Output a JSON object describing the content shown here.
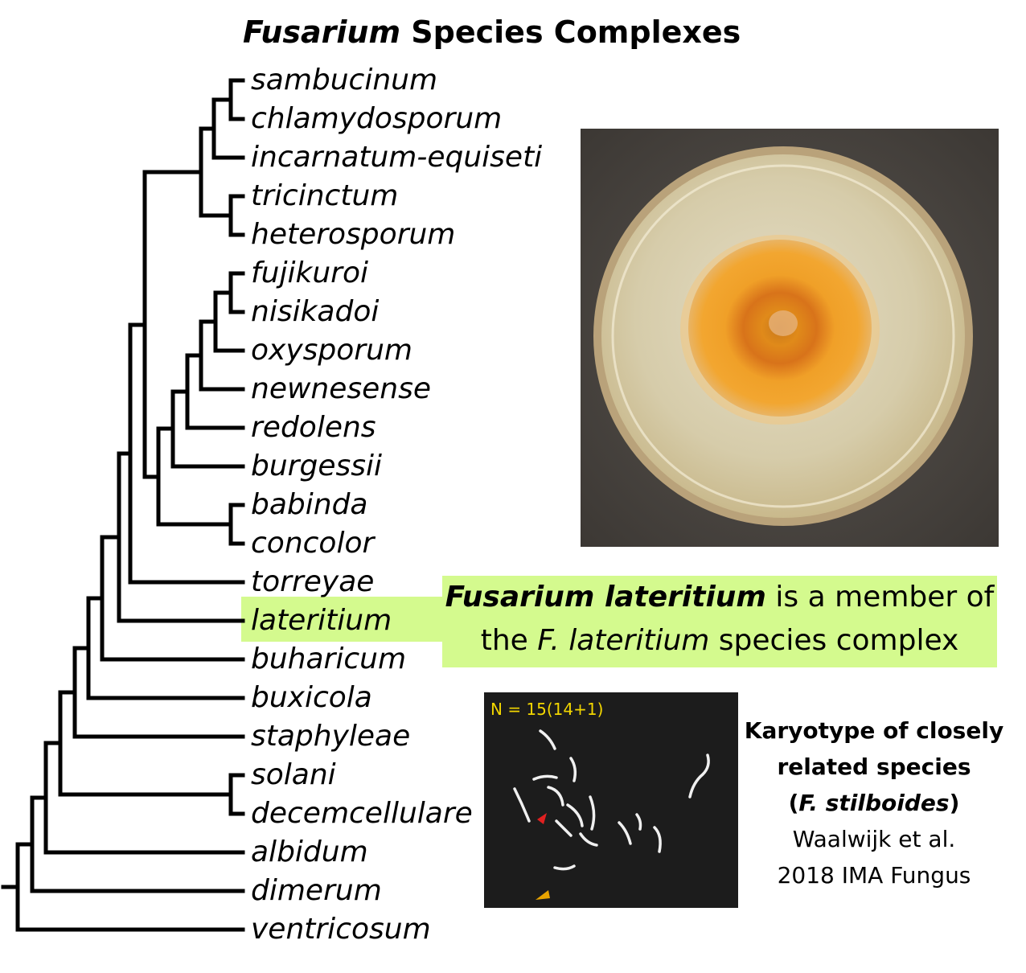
{
  "title": {
    "genus": "Fusarium",
    "rest": " Species Complexes"
  },
  "taxa": [
    "sambucinum",
    "chlamydosporum",
    "incarnatum-equiseti",
    "tricinctum",
    "heterosporum",
    "fujikuroi",
    "nisikadoi",
    "oxysporum",
    "newnesense",
    "redolens",
    "burgessii",
    "babinda",
    "concolor",
    "torreyae",
    "lateritium",
    "buharicum",
    "buxicola",
    "staphyleae",
    "solani",
    "decemcellulare",
    "albidum",
    "dimerum",
    "ventricosum"
  ],
  "callout": {
    "name": "Fusarium lateritium",
    "text1": " is a member of",
    "text2a": "the ",
    "name2": "F. lateritium",
    "text2b": " species complex"
  },
  "karyotype": {
    "count_label": "N = 15(14+1)"
  },
  "caption": {
    "line1": "Karyotype of closely",
    "line2": "related species",
    "line3a": "(",
    "line3b": "F. stilboides",
    "line3c": ")",
    "line4": "Waalwijk et al.",
    "line5": "2018 IMA Fungus"
  },
  "colors": {
    "highlight": "#d4fa8e",
    "count_label": "#f2d600"
  }
}
